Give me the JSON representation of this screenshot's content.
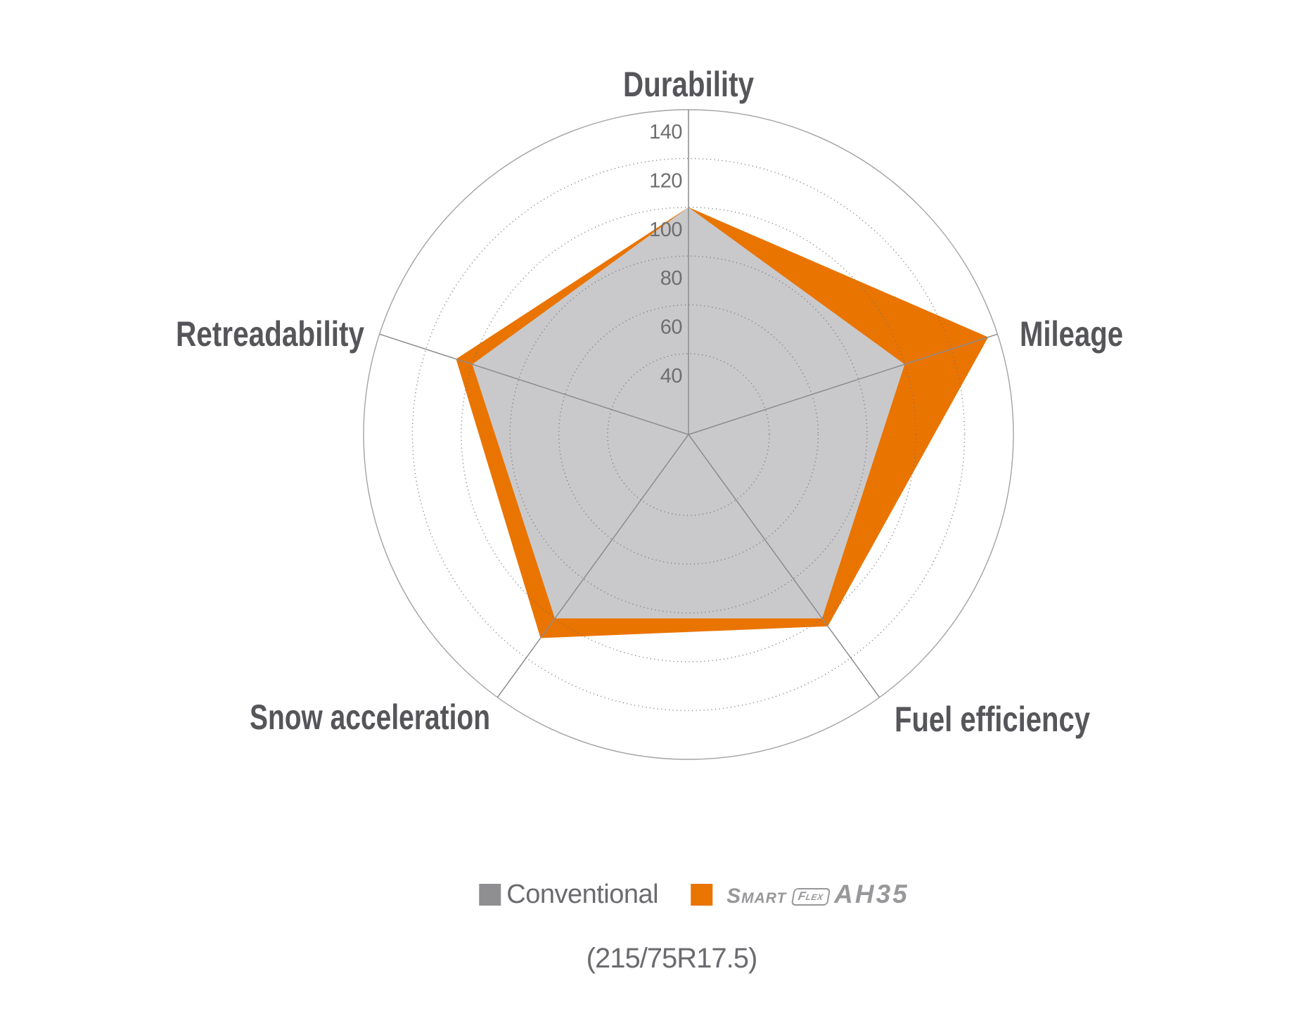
{
  "chart_data": {
    "type": "radar",
    "categories": [
      "Durability",
      "Mileage",
      "Fuel efficiency",
      "Snow acceleration",
      "Retreadability"
    ],
    "series": [
      {
        "name": "Conventional",
        "color": "#c9c9cb",
        "values": [
          100,
          100,
          100,
          100,
          100
        ]
      },
      {
        "name": "SmartFlex AH35",
        "color": "#ea7400",
        "values": [
          100,
          136,
          104,
          110,
          107
        ]
      }
    ],
    "radial_axis": {
      "ticks": [
        40,
        60,
        80,
        100,
        120,
        140
      ],
      "min_shown": 40,
      "max": 140,
      "grid_style": "dotted circles, outermost solid"
    },
    "legend_position": "bottom",
    "subtitle": "(215/75R17.5)"
  },
  "legend": {
    "conventional_label": "Conventional",
    "conventional_color": "#8f8f92",
    "product_color": "#ea7400",
    "product_smart": "Smart",
    "product_flex": "Flex",
    "product_model": "AH35"
  },
  "caption": "(215/75R17.5)",
  "colors": {
    "category_label": "#56565a",
    "tick_label": "#6e6e71",
    "legend_text": "#6b6b6f",
    "logo_gray": "#98989b"
  }
}
